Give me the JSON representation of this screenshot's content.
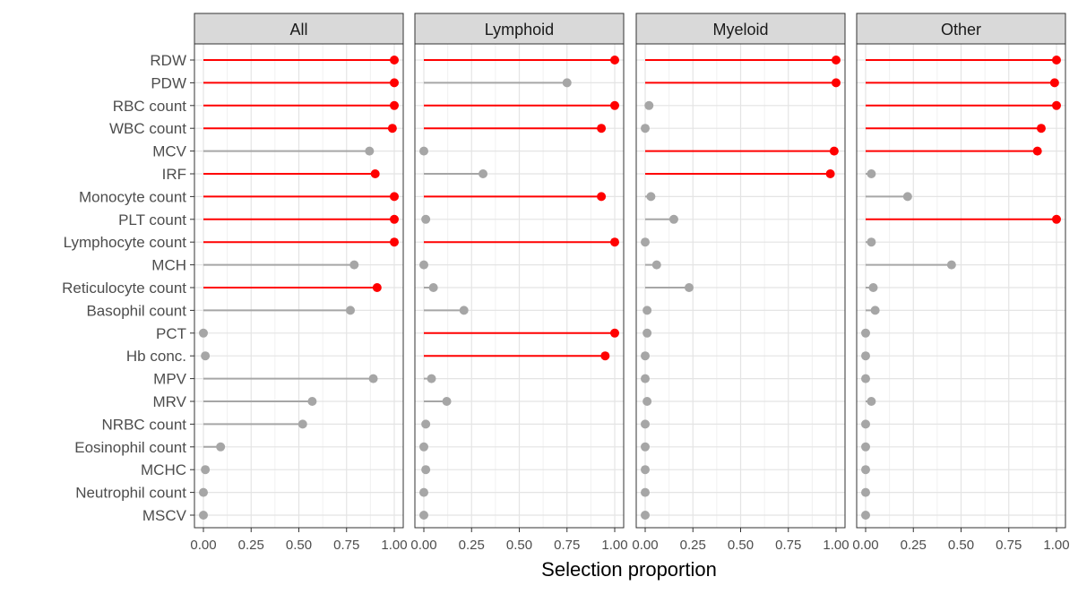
{
  "chart_data": {
    "type": "lollipop",
    "xlabel": "Selection proportion",
    "ylabel": "",
    "xlim": [
      0,
      1
    ],
    "x_ticks": [
      "0.00",
      "0.25",
      "0.50",
      "0.75",
      "1.00"
    ],
    "grid": true,
    "colors": {
      "selected": "#ff0000",
      "not_selected": "#a6a6a6",
      "strip_fill": "#d9d9d9"
    },
    "variables": [
      "RDW",
      "PDW",
      "RBC count",
      "WBC count",
      "MCV",
      "IRF",
      "Monocyte count",
      "PLT count",
      "Lymphocyte count",
      "MCH",
      "Reticulocyte count",
      "Basophil count",
      "PCT",
      "Hb conc.",
      "MPV",
      "MRV",
      "NRBC count",
      "Eosinophil count",
      "MCHC",
      "Neutrophil count",
      "MSCV"
    ],
    "panels": [
      {
        "name": "All",
        "values": [
          1.0,
          1.0,
          1.0,
          0.99,
          0.87,
          0.9,
          1.0,
          1.0,
          1.0,
          0.79,
          0.91,
          0.77,
          0.0,
          0.01,
          0.89,
          0.57,
          0.52,
          0.09,
          0.01,
          0.0,
          0.0
        ],
        "selected": [
          true,
          true,
          true,
          true,
          false,
          true,
          true,
          true,
          true,
          false,
          true,
          false,
          false,
          false,
          false,
          false,
          false,
          false,
          false,
          false,
          false
        ]
      },
      {
        "name": "Lymphoid",
        "values": [
          1.0,
          0.75,
          1.0,
          0.93,
          0.0,
          0.31,
          0.93,
          0.01,
          1.0,
          0.0,
          0.05,
          0.21,
          1.0,
          0.95,
          0.04,
          0.12,
          0.01,
          0.0,
          0.01,
          0.0,
          0.0
        ],
        "selected": [
          true,
          false,
          true,
          true,
          false,
          false,
          true,
          false,
          true,
          false,
          false,
          false,
          true,
          true,
          false,
          false,
          false,
          false,
          false,
          false,
          false
        ]
      },
      {
        "name": "Myeloid",
        "values": [
          1.0,
          1.0,
          0.02,
          0.0,
          0.99,
          0.97,
          0.03,
          0.15,
          0.0,
          0.06,
          0.23,
          0.01,
          0.01,
          0.0,
          0.0,
          0.01,
          0.0,
          0.0,
          0.0,
          0.0,
          0.0
        ],
        "selected": [
          true,
          true,
          false,
          false,
          true,
          true,
          false,
          false,
          false,
          false,
          false,
          false,
          false,
          false,
          false,
          false,
          false,
          false,
          false,
          false,
          false
        ]
      },
      {
        "name": "Other",
        "values": [
          1.0,
          0.99,
          1.0,
          0.92,
          0.9,
          0.03,
          0.22,
          1.0,
          0.03,
          0.45,
          0.04,
          0.05,
          0.0,
          0.0,
          0.0,
          0.03,
          0.0,
          0.0,
          0.0,
          0.0,
          0.0
        ],
        "selected": [
          true,
          true,
          true,
          true,
          true,
          false,
          false,
          true,
          false,
          false,
          false,
          false,
          false,
          false,
          false,
          false,
          false,
          false,
          false,
          false,
          false
        ]
      }
    ]
  }
}
